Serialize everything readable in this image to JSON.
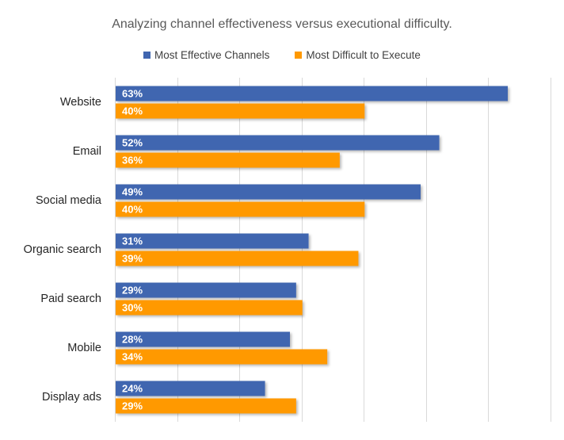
{
  "chart_data": {
    "type": "bar",
    "orientation": "horizontal",
    "title": "Analyzing channel effectiveness versus executional difficulty.",
    "categories": [
      "Website",
      "Email",
      "Social media",
      "Organic search",
      "Paid search",
      "Mobile",
      "Display ads"
    ],
    "series": [
      {
        "name": "Most Effective Channels",
        "color": "#4066b0",
        "values": [
          63,
          52,
          49,
          31,
          29,
          28,
          24
        ]
      },
      {
        "name": "Most Difficult to Execute",
        "color": "#ff9900",
        "values": [
          40,
          36,
          40,
          39,
          30,
          34,
          29
        ]
      }
    ],
    "value_suffix": "%",
    "xlim": [
      0,
      70
    ],
    "x_gridline_step": 10,
    "x_tick_labels_shown": false,
    "grid": true,
    "legend": "top-center",
    "xlabel": "",
    "ylabel": ""
  }
}
